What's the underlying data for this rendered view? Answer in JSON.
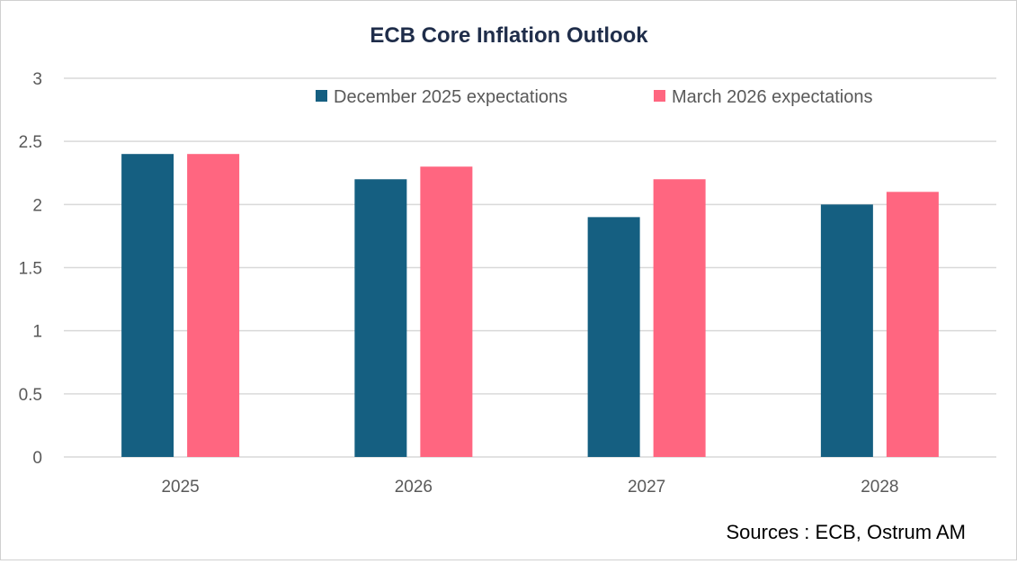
{
  "chart_data": {
    "type": "bar",
    "title": "ECB Core Inflation Outlook",
    "categories": [
      "2025",
      "2026",
      "2027",
      "2028"
    ],
    "series": [
      {
        "name": "December 2025 expectations",
        "values": [
          2.4,
          2.2,
          1.9,
          2.0
        ],
        "color": "#155F81"
      },
      {
        "name": "March 2026 expectations",
        "values": [
          2.4,
          2.3,
          2.2,
          2.1
        ],
        "color": "#FF6680"
      }
    ],
    "ylim": [
      0,
      3
    ],
    "yticks": [
      "0",
      "0.5",
      "1",
      "1.5",
      "2",
      "2.5",
      "3"
    ],
    "grid": true,
    "legend_position": "top-right",
    "source": "Sources : ECB, Ostrum AM"
  }
}
